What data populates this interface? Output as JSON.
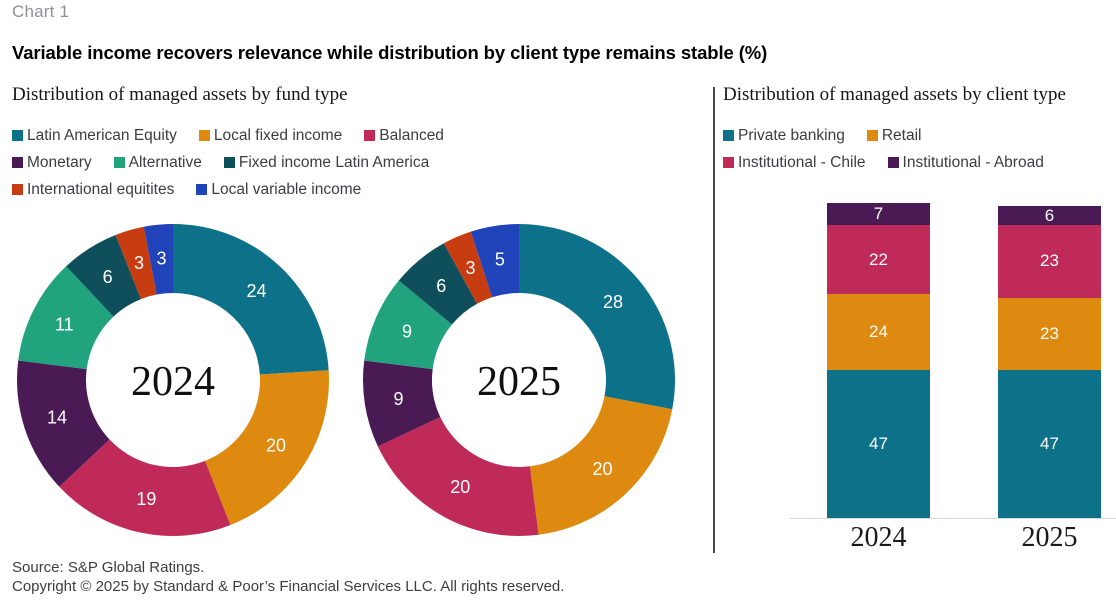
{
  "page": {
    "chart_label": "Chart 1",
    "title": "Variable income recovers relevance while distribution by client type remains stable (%)",
    "source_line1": "Source: S&P Global Ratings.",
    "source_line2": "Copyright © 2025 by Standard & Poor’s Financial Services LLC. All rights reserved."
  },
  "chart_data": [
    {
      "type": "pie",
      "variant": "donut",
      "title": "Distribution of managed assets by fund type",
      "legend_position": "top",
      "categories": [
        "Latin American Equity",
        "Local fixed income",
        "Balanced",
        "Monetary",
        "Alternative",
        "Fixed income Latin America",
        "International equitites",
        "Local variable income"
      ],
      "colors": [
        "#0e718a",
        "#de8a10",
        "#c02a58",
        "#4a1a54",
        "#21a47e",
        "#0f4f5c",
        "#c83c11",
        "#2043ba"
      ],
      "series": [
        {
          "name": "2024",
          "values": [
            24,
            20,
            19,
            14,
            11,
            6,
            3,
            3
          ]
        },
        {
          "name": "2025",
          "values": [
            28,
            20,
            20,
            9,
            9,
            6,
            3,
            5
          ]
        }
      ],
      "start_angle_deg": 0,
      "direction": "clockwise"
    },
    {
      "type": "bar",
      "variant": "stacked",
      "title": "Distribution of managed assets by client type",
      "legend_position": "top",
      "categories": [
        "2024",
        "2025"
      ],
      "series": [
        {
          "name": "Private banking",
          "color": "#0e718a",
          "values": [
            47,
            47
          ]
        },
        {
          "name": "Retail",
          "color": "#de8a10",
          "values": [
            24,
            23
          ]
        },
        {
          "name": "Institutional - Chile",
          "color": "#c02a58",
          "values": [
            22,
            23
          ]
        },
        {
          "name": "Institutional - Abroad",
          "color": "#4a1a54",
          "values": [
            7,
            6
          ]
        }
      ],
      "stack_order": "bottom-to-top",
      "ylim": [
        0,
        100
      ],
      "grid": false
    }
  ]
}
